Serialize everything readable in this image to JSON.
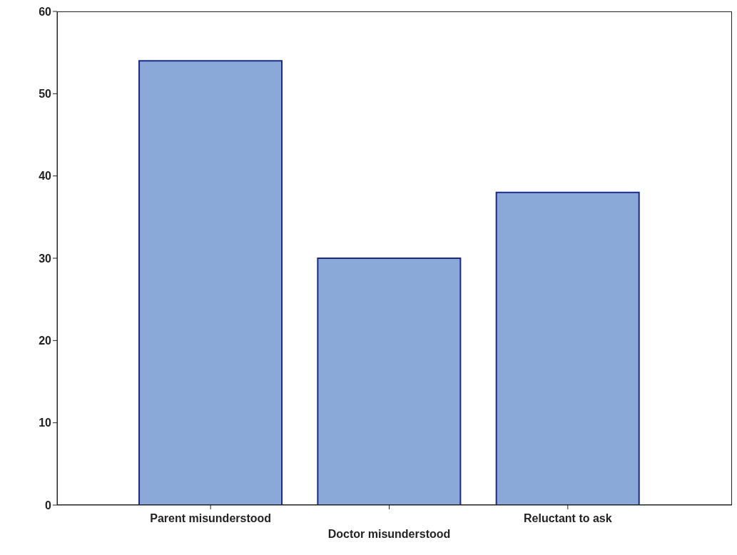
{
  "chart_data": {
    "type": "bar",
    "categories": [
      "Parent misunderstood",
      "Doctor misunderstood",
      "Reluctant to ask"
    ],
    "values": [
      54,
      30,
      38
    ],
    "color": "#8aa9d8",
    "ylim": [
      0,
      60
    ],
    "yticks": [
      0,
      10,
      20,
      30,
      40,
      50,
      60
    ],
    "grid": false
  }
}
